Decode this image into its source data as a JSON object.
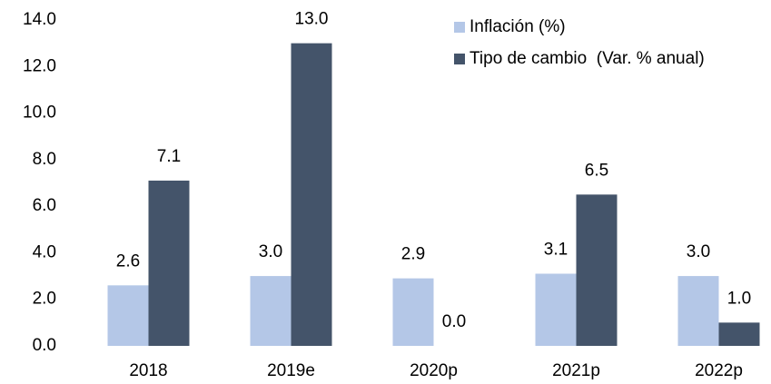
{
  "chart_data": {
    "type": "bar",
    "categories": [
      "2018",
      "2019e",
      "2020p",
      "2021p",
      "2022p"
    ],
    "series": [
      {
        "name": "Inflación (%)",
        "color": "#b4c7e7",
        "values": [
          2.6,
          3.0,
          2.9,
          3.1,
          3.0
        ],
        "value_labels": [
          "2.6",
          "3.0",
          "2.9",
          "3.1",
          "3.0"
        ]
      },
      {
        "name": "Tipo de cambio  (Var. % anual)",
        "color": "#44546a",
        "values": [
          7.1,
          13.0,
          0.0,
          6.5,
          1.0
        ],
        "value_labels": [
          "7.1",
          "13.0",
          "0.0",
          "6.5",
          "1.0"
        ]
      }
    ],
    "ylim": [
      0,
      14
    ],
    "yticks": [
      {
        "value": 0,
        "label": "0.0"
      },
      {
        "value": 2,
        "label": "2.0"
      },
      {
        "value": 4,
        "label": "4.0"
      },
      {
        "value": 6,
        "label": "6.0"
      },
      {
        "value": 8,
        "label": "8.0"
      },
      {
        "value": 10,
        "label": "10.0"
      },
      {
        "value": 12,
        "label": "12.0"
      },
      {
        "value": 14,
        "label": "14.0"
      }
    ],
    "grid": false,
    "legend": "top-right"
  }
}
